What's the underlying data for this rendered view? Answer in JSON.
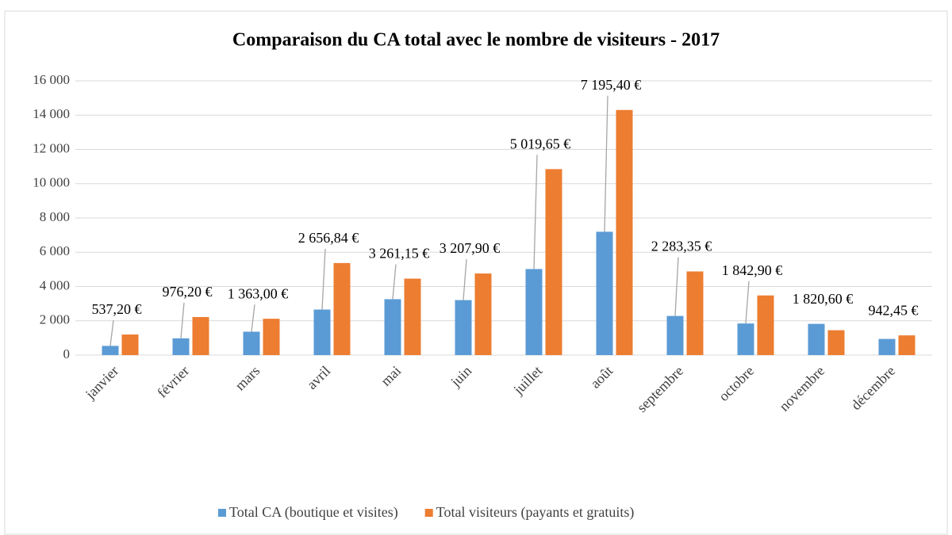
{
  "chart_data": {
    "type": "bar",
    "title": "Comparaison du CA total avec le nombre de visiteurs - 2017",
    "categories": [
      "janvier",
      "février",
      "mars",
      "avril",
      "mai",
      "juin",
      "juillet",
      "août",
      "septembre",
      "octobre",
      "novembre",
      "décembre"
    ],
    "series": [
      {
        "name": "Total CA (boutique et visites)",
        "color": "#5b9bd5",
        "values": [
          537.2,
          976.2,
          1363.0,
          2656.84,
          3261.15,
          3207.9,
          5019.65,
          7195.4,
          2283.35,
          1842.9,
          1820.6,
          942.45
        ],
        "value_labels": [
          "537,20 €",
          "976,20 €",
          "1 363,00 €",
          "2 656,84 €",
          "3 261,15 €",
          "3 207,90 €",
          "5 019,65 €",
          "7 195,40 €",
          "2 283,35 €",
          "1 842,90 €",
          "1 820,60 €",
          "942,45 €"
        ]
      },
      {
        "name": "Total visiteurs (payants et gratuits)",
        "color": "#ed7d31",
        "values": [
          1200,
          2220,
          2120,
          5370,
          4460,
          4760,
          10850,
          14300,
          4880,
          3480,
          1450,
          1150
        ]
      }
    ],
    "ylim": [
      0,
      16000
    ],
    "yticks": [
      0,
      {
        "value": 2000,
        "label": "2 000"
      },
      {
        "value": 4000,
        "label": "4 000"
      },
      {
        "value": 6000,
        "label": "6 000"
      },
      {
        "value": 8000,
        "label": "8 000"
      },
      {
        "value": 10000,
        "label": "10 000"
      },
      {
        "value": 12000,
        "label": "12 000"
      },
      {
        "value": 14000,
        "label": "14 000"
      },
      {
        "value": 16000,
        "label": "16 000"
      }
    ],
    "grid": true,
    "legend": "bottom"
  }
}
